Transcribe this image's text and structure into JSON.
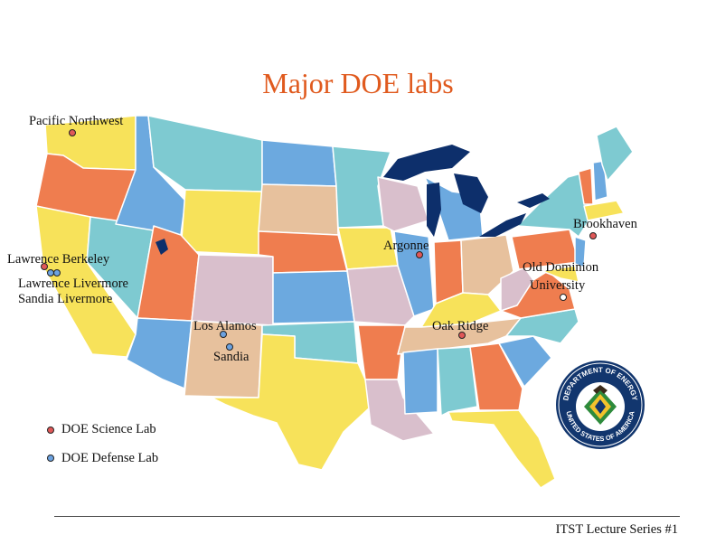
{
  "title": "Major DOE labs",
  "labs": {
    "pacific_northwest": "Pacific Northwest",
    "lawrence_berkeley": "Lawrence Berkeley",
    "lawrence_livermore": "Lawrence Livermore",
    "sandia_livermore": "Sandia Livermore",
    "los_alamos": "Los Alamos",
    "sandia": "Sandia",
    "argonne": "Argonne",
    "oak_ridge": "Oak Ridge",
    "brookhaven": "Brookhaven",
    "old_dominion_line1": "Old Dominion",
    "old_dominion_line2": "University"
  },
  "lab_types": {
    "pacific_northwest": "science",
    "lawrence_berkeley": "science",
    "lawrence_livermore": "defense",
    "sandia_livermore": "defense",
    "los_alamos": "defense",
    "sandia": "defense",
    "argonne": "science",
    "oak_ridge": "science",
    "brookhaven": "science",
    "old_dominion": "other"
  },
  "legend": {
    "science": "DOE Science Lab",
    "defense": "DOE Defense Lab"
  },
  "colors": {
    "title": "#e05a1e",
    "science_marker": "#e05858",
    "defense_marker": "#6ca2e0",
    "great_lakes": "#0d2f6b"
  },
  "footer": "ITST Lecture Series #1",
  "seal": {
    "top_text": "DEPARTMENT OF ENERGY",
    "bottom_text": "UNITED STATES OF AMERICA"
  }
}
